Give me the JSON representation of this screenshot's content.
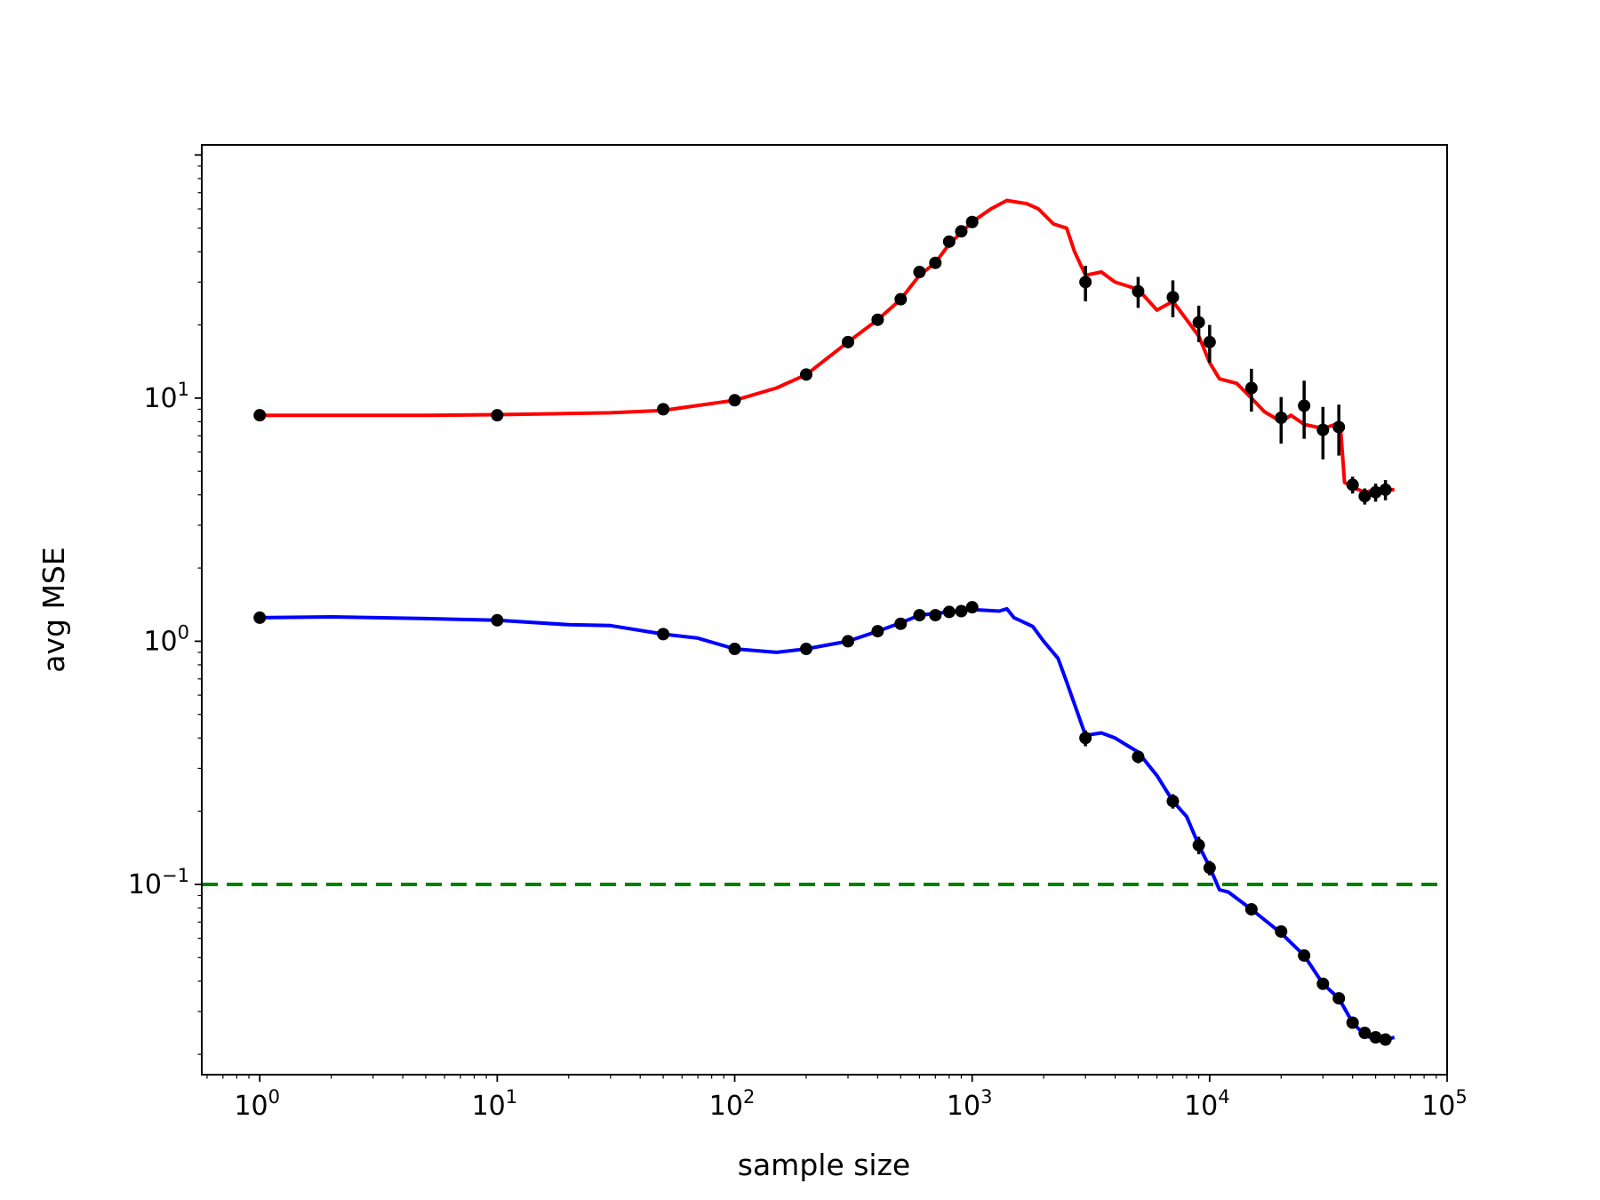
{
  "chart_data": {
    "type": "line",
    "title": "",
    "xlabel": "sample size",
    "ylabel": "avg MSE",
    "xscale": "log",
    "yscale": "log",
    "xlim": [
      0.57,
      100000
    ],
    "ylim": [
      0.0165,
      110
    ],
    "grid": false,
    "legend": "none",
    "x_ticks": [
      {
        "value": 1,
        "base": "10",
        "exp": "0"
      },
      {
        "value": 10,
        "base": "10",
        "exp": "1"
      },
      {
        "value": 100,
        "base": "10",
        "exp": "2"
      },
      {
        "value": 1000,
        "base": "10",
        "exp": "3"
      },
      {
        "value": 10000,
        "base": "10",
        "exp": "4"
      },
      {
        "value": 100000,
        "base": "10",
        "exp": "5"
      }
    ],
    "y_ticks": [
      {
        "value": 0.1,
        "base": "10",
        "exp": "−1"
      },
      {
        "value": 1,
        "base": "10",
        "exp": "0"
      },
      {
        "value": 10,
        "base": "10",
        "exp": "1"
      }
    ],
    "threshold": {
      "y": 0.1,
      "color": "#008000",
      "style": "dashed"
    },
    "series": [
      {
        "color": "#ff0000",
        "curve": [
          [
            1,
            8.5
          ],
          [
            5,
            8.5
          ],
          [
            10,
            8.55
          ],
          [
            30,
            8.7
          ],
          [
            50,
            8.9
          ],
          [
            100,
            9.8
          ],
          [
            150,
            11
          ],
          [
            200,
            12.5
          ],
          [
            300,
            17
          ],
          [
            400,
            21
          ],
          [
            500,
            25.5
          ],
          [
            600,
            32
          ],
          [
            700,
            36
          ],
          [
            800,
            43
          ],
          [
            900,
            48
          ],
          [
            1000,
            53
          ],
          [
            1200,
            60
          ],
          [
            1400,
            65
          ],
          [
            1700,
            63
          ],
          [
            1900,
            60
          ],
          [
            2200,
            52
          ],
          [
            2500,
            50
          ],
          [
            2700,
            40
          ],
          [
            3000,
            32
          ],
          [
            3500,
            33
          ],
          [
            4000,
            30
          ],
          [
            5000,
            28
          ],
          [
            6000,
            23
          ],
          [
            7000,
            25
          ],
          [
            8000,
            21
          ],
          [
            9000,
            18
          ],
          [
            10000,
            14
          ],
          [
            11000,
            12
          ],
          [
            13000,
            11.5
          ],
          [
            15000,
            10
          ],
          [
            17000,
            8.8
          ],
          [
            20000,
            8
          ],
          [
            22000,
            8.5
          ],
          [
            25000,
            7.8
          ],
          [
            30000,
            7.5
          ],
          [
            34000,
            7.8
          ],
          [
            35500,
            7.8
          ],
          [
            37000,
            4.5
          ],
          [
            40000,
            4.3
          ],
          [
            45000,
            4.1
          ],
          [
            50000,
            4.2
          ],
          [
            55000,
            4.2
          ],
          [
            60000,
            4.2
          ]
        ],
        "points": [
          {
            "x": 1,
            "y": 8.5,
            "err": 0
          },
          {
            "x": 10,
            "y": 8.5,
            "err": 0
          },
          {
            "x": 50,
            "y": 9.0,
            "err": 0
          },
          {
            "x": 100,
            "y": 9.8,
            "err": 0
          },
          {
            "x": 200,
            "y": 12.5,
            "err": 0
          },
          {
            "x": 300,
            "y": 17,
            "err": 0
          },
          {
            "x": 400,
            "y": 21,
            "err": 0
          },
          {
            "x": 500,
            "y": 25.5,
            "err": 1.2
          },
          {
            "x": 600,
            "y": 33,
            "err": 1.5
          },
          {
            "x": 700,
            "y": 36,
            "err": 0
          },
          {
            "x": 800,
            "y": 44,
            "err": 0
          },
          {
            "x": 900,
            "y": 48.5,
            "err": 0
          },
          {
            "x": 1000,
            "y": 53,
            "err": 0
          },
          {
            "x": 3000,
            "y": 30,
            "err": 5
          },
          {
            "x": 5000,
            "y": 27.5,
            "err": 4
          },
          {
            "x": 7000,
            "y": 26,
            "err": 4.5
          },
          {
            "x": 9000,
            "y": 20.5,
            "err": 3.5
          },
          {
            "x": 10000,
            "y": 17,
            "err": 3
          },
          {
            "x": 15000,
            "y": 11,
            "err": 2.2
          },
          {
            "x": 20000,
            "y": 8.3,
            "err": 1.8
          },
          {
            "x": 25000,
            "y": 9.3,
            "err": 2.5
          },
          {
            "x": 30000,
            "y": 7.4,
            "err": 1.8
          },
          {
            "x": 35000,
            "y": 7.6,
            "err": 1.8
          },
          {
            "x": 40000,
            "y": 4.4,
            "err": 0.35
          },
          {
            "x": 45000,
            "y": 3.95,
            "err": 0.3
          },
          {
            "x": 50000,
            "y": 4.1,
            "err": 0.35
          },
          {
            "x": 55000,
            "y": 4.2,
            "err": 0.4
          }
        ]
      },
      {
        "color": "#0000ff",
        "curve": [
          [
            1,
            1.25
          ],
          [
            2,
            1.26
          ],
          [
            5,
            1.24
          ],
          [
            10,
            1.22
          ],
          [
            20,
            1.17
          ],
          [
            30,
            1.16
          ],
          [
            50,
            1.07
          ],
          [
            70,
            1.03
          ],
          [
            100,
            0.93
          ],
          [
            150,
            0.9
          ],
          [
            200,
            0.93
          ],
          [
            300,
            1.0
          ],
          [
            400,
            1.1
          ],
          [
            500,
            1.19
          ],
          [
            600,
            1.28
          ],
          [
            800,
            1.32
          ],
          [
            1000,
            1.35
          ],
          [
            1300,
            1.33
          ],
          [
            1400,
            1.36
          ],
          [
            1500,
            1.25
          ],
          [
            1800,
            1.15
          ],
          [
            2000,
            1.0
          ],
          [
            2300,
            0.85
          ],
          [
            2500,
            0.68
          ],
          [
            3000,
            0.41
          ],
          [
            3500,
            0.42
          ],
          [
            4000,
            0.4
          ],
          [
            5000,
            0.35
          ],
          [
            6000,
            0.28
          ],
          [
            7000,
            0.22
          ],
          [
            8000,
            0.19
          ],
          [
            9000,
            0.145
          ],
          [
            10000,
            0.118
          ],
          [
            11000,
            0.095
          ],
          [
            12000,
            0.093
          ],
          [
            15000,
            0.079
          ],
          [
            20000,
            0.063
          ],
          [
            25000,
            0.051
          ],
          [
            30000,
            0.039
          ],
          [
            35000,
            0.034
          ],
          [
            40000,
            0.027
          ],
          [
            45000,
            0.024
          ],
          [
            50000,
            0.023
          ],
          [
            55000,
            0.023
          ],
          [
            60000,
            0.0235
          ]
        ],
        "points": [
          {
            "x": 1,
            "y": 1.25,
            "err": 0
          },
          {
            "x": 10,
            "y": 1.22,
            "err": 0
          },
          {
            "x": 50,
            "y": 1.07,
            "err": 0
          },
          {
            "x": 100,
            "y": 0.93,
            "err": 0
          },
          {
            "x": 200,
            "y": 0.93,
            "err": 0
          },
          {
            "x": 300,
            "y": 1.0,
            "err": 0
          },
          {
            "x": 400,
            "y": 1.1,
            "err": 0
          },
          {
            "x": 500,
            "y": 1.18,
            "err": 0
          },
          {
            "x": 600,
            "y": 1.28,
            "err": 0
          },
          {
            "x": 700,
            "y": 1.28,
            "err": 0
          },
          {
            "x": 800,
            "y": 1.32,
            "err": 0
          },
          {
            "x": 900,
            "y": 1.33,
            "err": 0
          },
          {
            "x": 1000,
            "y": 1.38,
            "err": 0
          },
          {
            "x": 3000,
            "y": 0.4,
            "err": 0.03
          },
          {
            "x": 5000,
            "y": 0.335,
            "err": 0.02
          },
          {
            "x": 7000,
            "y": 0.22,
            "err": 0.015
          },
          {
            "x": 9000,
            "y": 0.145,
            "err": 0.012
          },
          {
            "x": 10000,
            "y": 0.117,
            "err": 0.008
          },
          {
            "x": 15000,
            "y": 0.079,
            "err": 0.003
          },
          {
            "x": 20000,
            "y": 0.064,
            "err": 0.002
          },
          {
            "x": 25000,
            "y": 0.051,
            "err": 0.002
          },
          {
            "x": 30000,
            "y": 0.039,
            "err": 0.0015
          },
          {
            "x": 35000,
            "y": 0.034,
            "err": 0.001
          },
          {
            "x": 40000,
            "y": 0.027,
            "err": 0.001
          },
          {
            "x": 45000,
            "y": 0.0245,
            "err": 0
          },
          {
            "x": 50000,
            "y": 0.0235,
            "err": 0
          },
          {
            "x": 55000,
            "y": 0.023,
            "err": 0
          }
        ]
      }
    ]
  }
}
